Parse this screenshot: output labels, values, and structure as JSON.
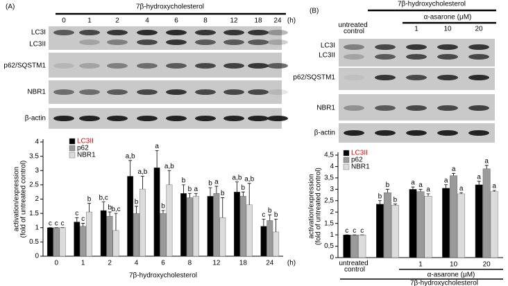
{
  "panels": [
    {
      "label": "(A)",
      "blot_rows": [
        "LC3I",
        "LC3II",
        "p62/SQSTM1",
        "NBR1",
        "β-actin"
      ]
    },
    {
      "label": "(B)",
      "blot_rows": [
        "LC3I",
        "LC3II",
        "p62/SQSTM1",
        "NBR1",
        "β-actin"
      ]
    }
  ],
  "chart_data": [
    {
      "type": "bar",
      "y_label": [
        "activation/expression",
        "(fold of untreated control)"
      ],
      "x_label": "7β-hydroxycholesterol",
      "x_unit": "(h)",
      "categories": [
        "0",
        "1",
        "2",
        "4",
        "6",
        "8",
        "12",
        "18",
        "24"
      ],
      "ylim": [
        0,
        4
      ],
      "yticks": [
        0,
        0.5,
        1,
        1.5,
        2,
        2.5,
        3,
        3.5,
        4
      ],
      "series": [
        {
          "name": "LC3II",
          "color": "#000000",
          "values": [
            1.0,
            1.2,
            1.6,
            2.8,
            3.1,
            2.2,
            2.1,
            2.25,
            1.05
          ],
          "errors": [
            0,
            0.15,
            0.3,
            0.55,
            0.6,
            0.3,
            0.3,
            0.35,
            0.25
          ],
          "letters": [
            "c",
            "c",
            "b,c",
            "a,b",
            "a",
            "b",
            "b",
            "a,b",
            "c"
          ]
        },
        {
          "name": "p62",
          "color": "#9a9a9a",
          "values": [
            1.0,
            1.05,
            1.4,
            1.5,
            1.5,
            2.05,
            2.2,
            2.1,
            1.25
          ],
          "errors": [
            0,
            0.1,
            0.15,
            0.25,
            0.1,
            0.15,
            0.25,
            0.15,
            0.2
          ],
          "letters": [
            "c",
            "c",
            "b",
            "b",
            "b",
            "b",
            "a",
            "b",
            "b"
          ]
        },
        {
          "name": "NBR1",
          "color": "#dcdcdc",
          "values": [
            1.0,
            1.55,
            0.9,
            2.35,
            2.5,
            2.1,
            1.35,
            1.8,
            0.85
          ],
          "errors": [
            0,
            0.3,
            0.6,
            0.45,
            0.5,
            0.1,
            0.7,
            0.75,
            0.45
          ],
          "letters": [
            "c",
            "b",
            "b,c",
            "a,b",
            "a,b",
            "a",
            "b",
            "a,b",
            "b"
          ]
        }
      ]
    },
    {
      "type": "bar",
      "y_label": [
        "activation/expression",
        "(fold of untreated control)"
      ],
      "x_label": "7β-hydroxycholesterol",
      "x_sublabel": "α-asarone (μM)",
      "categories": [
        "untreated control",
        null,
        "1",
        "10",
        "20"
      ],
      "ylim": [
        0,
        4.5
      ],
      "yticks": [
        0,
        {
          "value": 0.5,
          "label": "0,5"
        },
        1,
        {
          "value": 1.5,
          "label": "1,5"
        },
        2,
        {
          "value": 2.5,
          "label": "2,5"
        },
        3,
        {
          "value": 3.5,
          "label": "3,5"
        },
        4,
        {
          "value": 4.5,
          "label": "4,5"
        }
      ],
      "series": [
        {
          "name": "LC3II",
          "color": "#000000",
          "values": [
            1.0,
            2.35,
            3.0,
            3.05,
            3.2
          ],
          "errors": [
            0,
            0.15,
            0.1,
            0.15,
            0.15
          ],
          "letters": [
            "c",
            "b",
            "a",
            "a",
            "a"
          ]
        },
        {
          "name": "p62",
          "color": "#9a9a9a",
          "values": [
            1.0,
            2.85,
            2.9,
            3.6,
            3.9
          ],
          "errors": [
            0,
            0.15,
            0.1,
            0.1,
            0.15
          ],
          "letters": [
            "c",
            "b",
            "a",
            "a",
            "a"
          ]
        },
        {
          "name": "NBR1",
          "color": "#dcdcdc",
          "values": [
            1.0,
            2.3,
            2.7,
            2.8,
            2.9
          ],
          "errors": [
            0,
            0.05,
            0.1,
            0.05,
            0.05
          ],
          "letters": [
            "c",
            "b",
            "a",
            "a",
            "a"
          ]
        }
      ]
    }
  ]
}
